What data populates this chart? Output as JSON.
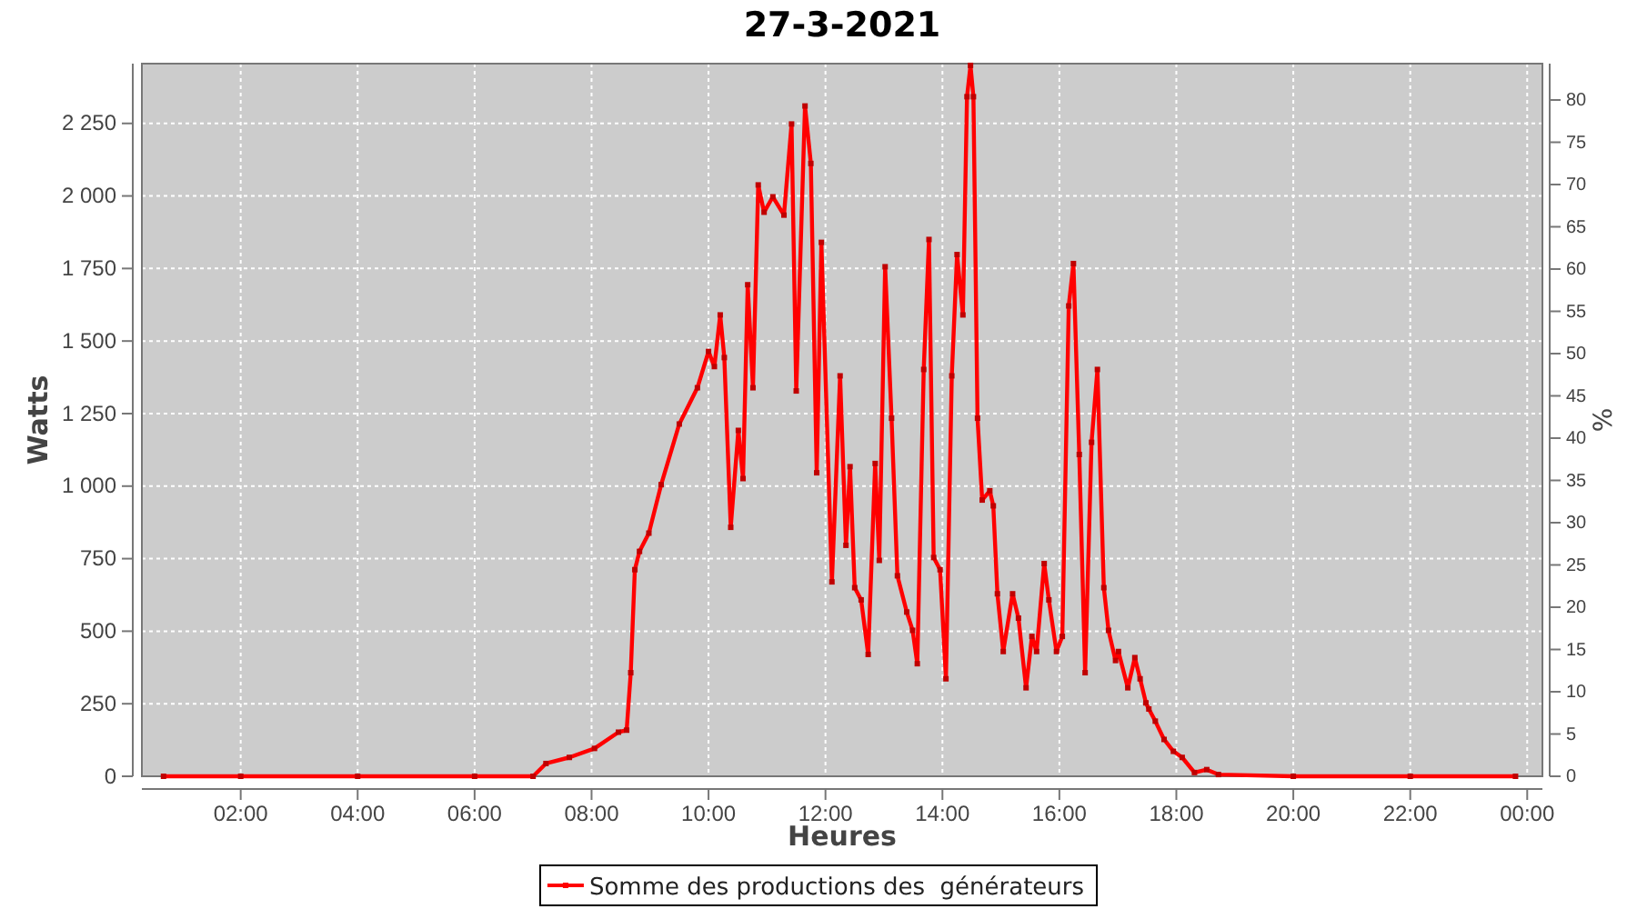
{
  "chart_data": {
    "type": "line",
    "title": "27-3-2021",
    "xlabel": "Heures",
    "ylabel": "Watts",
    "y2label": "%",
    "xlim": [
      0.31,
      24.26
    ],
    "ylim": [
      0,
      2456
    ],
    "y2lim": [
      0,
      84.3
    ],
    "xticks": [
      {
        "value": 2,
        "label": "02:00"
      },
      {
        "value": 4,
        "label": "04:00"
      },
      {
        "value": 6,
        "label": "06:00"
      },
      {
        "value": 8,
        "label": "08:00"
      },
      {
        "value": 10,
        "label": "10:00"
      },
      {
        "value": 12,
        "label": "12:00"
      },
      {
        "value": 14,
        "label": "14:00"
      },
      {
        "value": 16,
        "label": "16:00"
      },
      {
        "value": 18,
        "label": "18:00"
      },
      {
        "value": 20,
        "label": "20:00"
      },
      {
        "value": 22,
        "label": "22:00"
      },
      {
        "value": 24,
        "label": "00:00"
      }
    ],
    "yticks": [
      0,
      250,
      500,
      750,
      {
        "value": 1000,
        "label": "1 000"
      },
      {
        "value": 1250,
        "label": "1 250"
      },
      {
        "value": 1500,
        "label": "1 500"
      },
      {
        "value": 1750,
        "label": "1 750"
      },
      {
        "value": 2000,
        "label": "2 000"
      },
      {
        "value": 2250,
        "label": "2 250"
      }
    ],
    "y2ticks": [
      0,
      5,
      10,
      15,
      20,
      25,
      30,
      35,
      40,
      45,
      50,
      55,
      60,
      65,
      70,
      75,
      80
    ],
    "grid": true,
    "legend": "bottom",
    "marker": "square",
    "line_style": "solid",
    "series": [
      {
        "name": "Somme des productions des  générateurs",
        "color": "#ff0000",
        "x": [
          0.68,
          2,
          4,
          6,
          7.0,
          7.22,
          7.62,
          8.05,
          8.46,
          8.6,
          8.67,
          8.74,
          8.82,
          8.98,
          9.19,
          9.5,
          9.81,
          10.0,
          10.1,
          10.2,
          10.27,
          10.38,
          10.51,
          10.59,
          10.67,
          10.76,
          10.85,
          10.95,
          11.1,
          11.29,
          11.42,
          11.5,
          11.65,
          11.75,
          11.85,
          11.93,
          12.11,
          12.25,
          12.35,
          12.42,
          12.5,
          12.61,
          12.73,
          12.85,
          12.92,
          13.02,
          13.13,
          13.23,
          13.39,
          13.49,
          13.57,
          13.68,
          13.77,
          13.85,
          13.96,
          14.06,
          14.16,
          14.25,
          14.35,
          14.42,
          14.48,
          14.53,
          14.6,
          14.68,
          14.81,
          14.87,
          14.94,
          15.04,
          15.2,
          15.3,
          15.43,
          15.53,
          15.61,
          15.74,
          15.82,
          15.95,
          16.05,
          16.16,
          16.24,
          16.34,
          16.44,
          16.55,
          16.65,
          16.76,
          16.84,
          16.96,
          17.01,
          17.17,
          17.29,
          17.38,
          17.48,
          17.53,
          17.64,
          17.79,
          17.95,
          18.1,
          18.31,
          18.52,
          18.72,
          20,
          22,
          23.8
        ],
        "values": [
          0,
          0,
          0,
          0,
          0,
          44,
          65,
          96,
          152,
          159,
          357,
          712,
          775,
          838,
          1005,
          1214,
          1339,
          1464,
          1412,
          1590,
          1443,
          858,
          1192,
          1026,
          1694,
          1339,
          2038,
          1944,
          1997,
          1934,
          2248,
          1328,
          2310,
          2112,
          1046,
          1840,
          670,
          1380,
          796,
          1067,
          650,
          608,
          420,
          1078,
          744,
          1756,
          1234,
          691,
          566,
          503,
          388,
          1402,
          1850,
          754,
          712,
          336,
          1380,
          1798,
          1590,
          2342,
          2450,
          2342,
          1234,
          952,
          984,
          932,
          629,
          430,
          629,
          545,
          305,
          482,
          430,
          733,
          608,
          430,
          482,
          1621,
          1767,
          1109,
          357,
          1151,
          1402,
          650,
          503,
          399,
          430,
          305,
          409,
          336,
          253,
          232,
          190,
          127,
          86,
          65,
          13,
          23,
          6,
          0,
          0,
          0
        ]
      }
    ]
  }
}
